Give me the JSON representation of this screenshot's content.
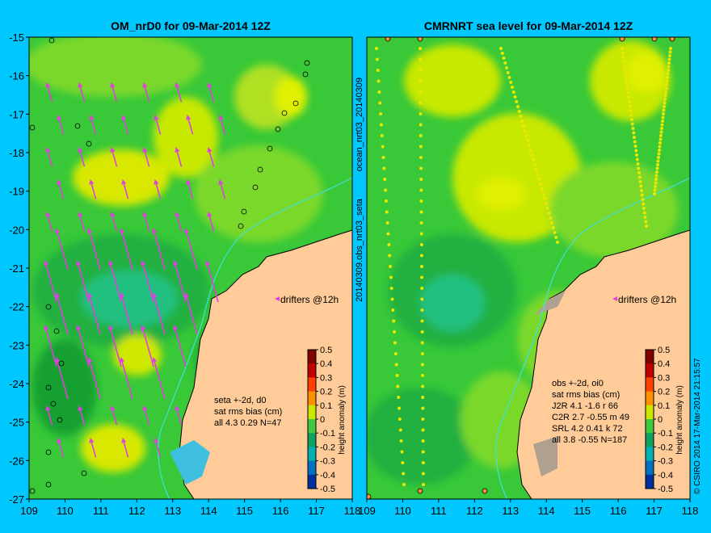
{
  "colors": {
    "background": "#00c8ff",
    "land": "#ffcc99",
    "coast": "#000000",
    "drifter": "#e040e0",
    "isobath": "#40e0e0",
    "obs_ring": "#000000"
  },
  "side_labels": {
    "mid_top": "ocean_nrt03_20140309",
    "mid_bottom": "20140309.obs_nrt03_seta",
    "right": "© CSIRO 2014  17-Mar-2014 21:15:57"
  },
  "chart_data": [
    {
      "type": "heatmap",
      "title": "OM_nrD0 for 09-Mar-2014 12Z",
      "xlim": [
        109,
        118
      ],
      "ylim": [
        -27,
        -15
      ],
      "x_ticks": [
        "109",
        "110",
        "111",
        "112",
        "113",
        "114",
        "115",
        "116",
        "117",
        "118"
      ],
      "y_ticks": [
        "-15",
        "-16",
        "-17",
        "-18",
        "-19",
        "-20",
        "-21",
        "-22",
        "-23",
        "-24",
        "-25",
        "-26",
        "-27"
      ],
      "annotations": {
        "drifters": "drifters @12h",
        "stats": [
          "seta +-2d, d0",
          "sat rms bias (cm)",
          "all 4.3 0.29 N=47"
        ]
      },
      "colorbar": {
        "label": "height anomaly (m)",
        "ticks": [
          "0.5",
          "0.4",
          "0.3",
          "0.2",
          "0.1",
          "0",
          "-0.1",
          "-0.2",
          "-0.3",
          "-0.4",
          "-0.5"
        ]
      }
    },
    {
      "type": "heatmap",
      "title": "CMRNRT sea level  for 09-Mar-2014 12Z",
      "xlim": [
        109,
        118
      ],
      "ylim": [
        -27,
        -15
      ],
      "x_ticks": [
        "109",
        "110",
        "111",
        "112",
        "113",
        "114",
        "115",
        "116",
        "117",
        "118"
      ],
      "annotations": {
        "drifters": "drifters @12h",
        "stats": [
          "obs +-2d, oi0",
          "sat rms bias (cm)",
          "J2R  4.1 -1.6 r 66",
          "C2R  2.7 -0.55 m 49",
          "SRL  4.2 0.41 k 72",
          "all  3.8 -0.55 N=187"
        ]
      },
      "colorbar": {
        "label": "height anomaly (m)",
        "ticks": [
          "0.5",
          "0.4",
          "0.3",
          "0.2",
          "0.1",
          "0",
          "-0.1",
          "-0.2",
          "-0.3",
          "-0.4",
          "-0.5"
        ]
      }
    }
  ]
}
